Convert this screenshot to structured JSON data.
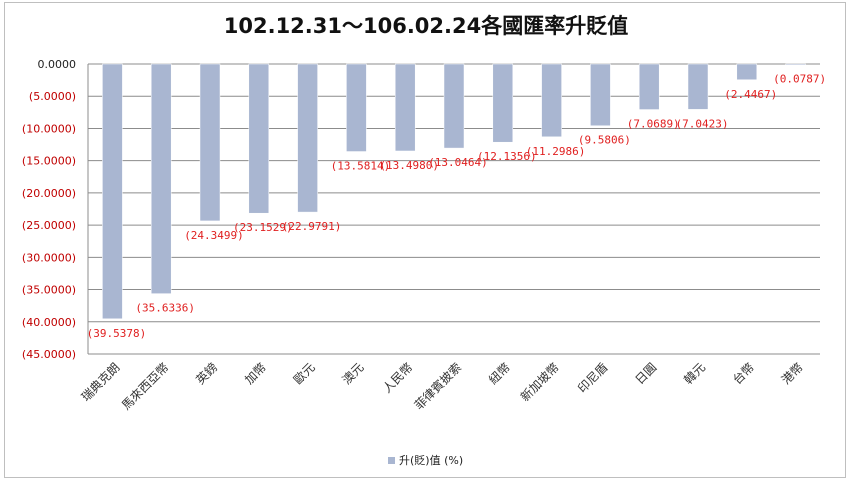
{
  "chart_data": {
    "type": "bar",
    "title": "102.12.31～106.02.24各國匯率升貶值",
    "categories": [
      "瑞典克朗",
      "馬來西亞幣",
      "英鎊",
      "加幣",
      "歐元",
      "澳元",
      "人民幣",
      "菲律賓披索",
      "紐幣",
      "新加坡幣",
      "印尼盾",
      "日圓",
      "韓元",
      "台幣",
      "港幣"
    ],
    "series": [
      {
        "name": "升(貶)值 (%)",
        "values": [
          -39.5378,
          -35.6336,
          -24.3499,
          -23.1529,
          -22.9791,
          -13.5814,
          -13.498,
          -13.0464,
          -12.1356,
          -11.2986,
          -9.5806,
          -7.0689,
          -7.0423,
          -2.4467,
          -0.0787
        ],
        "labels": [
          "(39.5378)",
          "(35.6336)",
          "(24.3499)",
          "(23.1529)",
          "(22.9791)",
          "(13.5814)",
          "(13.4980)",
          "(13.0464)",
          "(12.1356)",
          "(11.2986)",
          "(9.5806)",
          "(7.0689)",
          "(7.0423)",
          "(2.4467)",
          "(0.0787)"
        ]
      }
    ],
    "ylim": [
      -45,
      0
    ],
    "yticks": [
      0,
      -5,
      -10,
      -15,
      -20,
      -25,
      -30,
      -35,
      -40,
      -45
    ],
    "ytick_labels": [
      "0.0000",
      "(5.0000)",
      "(10.0000)",
      "(15.0000)",
      "(20.0000)",
      "(25.0000)",
      "(30.0000)",
      "(35.0000)",
      "(40.0000)",
      "(45.0000)"
    ],
    "grid": true,
    "legend_position": "bottom",
    "colors": {
      "bar": "#a9b6d1",
      "bar_edge": "#ffffff",
      "label": "#e02020",
      "grid": "#8c8c8c",
      "axis_text": "#c00000",
      "cat_text": "#333333"
    }
  }
}
